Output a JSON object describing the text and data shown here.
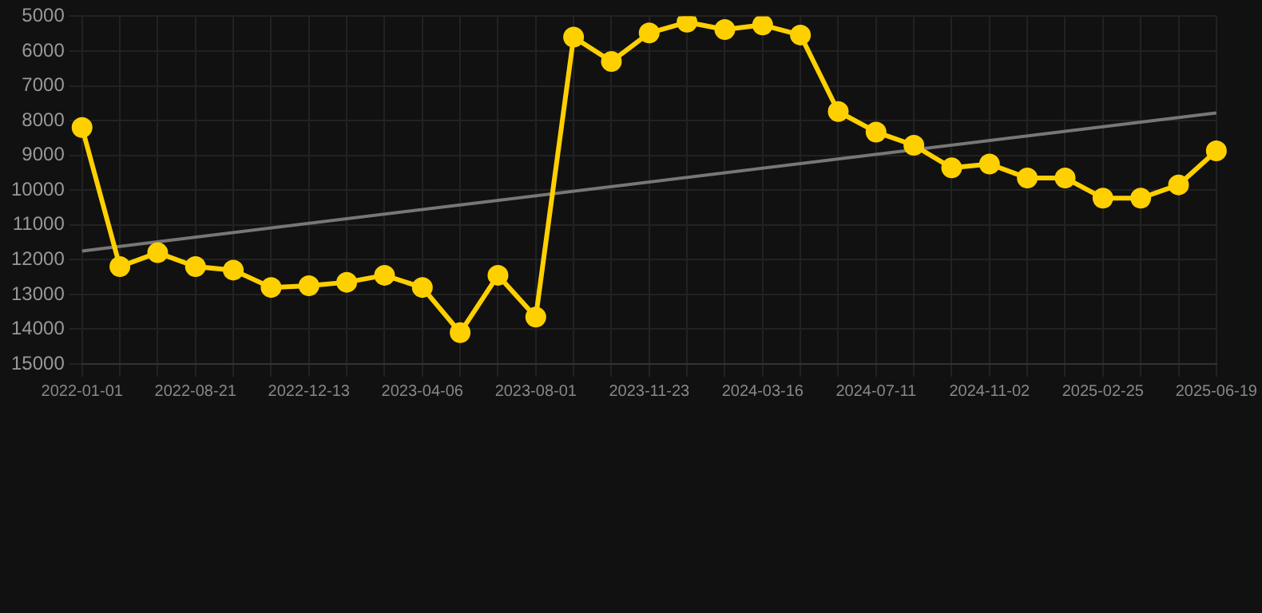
{
  "chart_data": {
    "type": "line",
    "categories": [
      "2022-01-01",
      null,
      null,
      "2022-08-21",
      null,
      null,
      "2022-12-13",
      null,
      null,
      "2023-04-06",
      null,
      null,
      "2023-08-01",
      null,
      null,
      "2023-11-23",
      null,
      null,
      "2024-03-16",
      null,
      null,
      "2024-07-11",
      null,
      null,
      "2024-11-02",
      null,
      null,
      "2025-02-25",
      null,
      null,
      "2025-06-19"
    ],
    "series": [
      {
        "color": "#ffd000",
        "marker": "circle",
        "values": [
          8200,
          12200,
          11800,
          12200,
          12300,
          12800,
          12750,
          12650,
          12450,
          12800,
          14100,
          12450,
          13650,
          5600,
          6300,
          5480,
          5170,
          5380,
          5250,
          5540,
          7740,
          8330,
          8710,
          9360,
          9250,
          9650,
          9650,
          10230,
          10230,
          9850,
          8870
        ]
      },
      {
        "color": "#777777",
        "marker": "none",
        "values": [
          11750,
          null,
          null,
          null,
          null,
          null,
          null,
          null,
          null,
          null,
          null,
          null,
          null,
          null,
          null,
          null,
          null,
          null,
          null,
          null,
          null,
          null,
          null,
          null,
          null,
          null,
          null,
          null,
          null,
          null,
          7780
        ]
      }
    ],
    "ylim": [
      15000,
      5000
    ],
    "yticks": [
      5000,
      6000,
      7000,
      8000,
      9000,
      10000,
      11000,
      12000,
      13000,
      14000,
      15000
    ],
    "grid": true,
    "legend": false
  }
}
